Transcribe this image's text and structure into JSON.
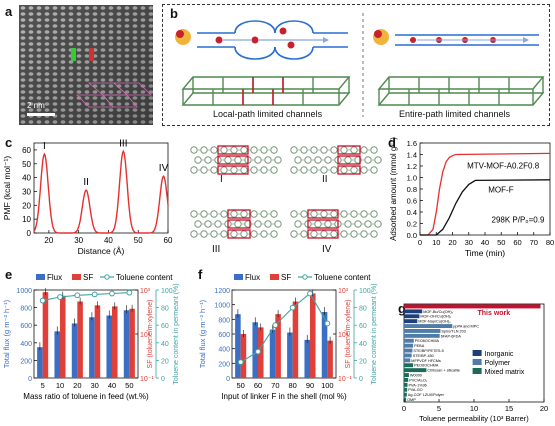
{
  "panel_labels": {
    "a": "a",
    "b": "b",
    "c": "c",
    "d": "d",
    "e": "e",
    "f": "f",
    "g": "g"
  },
  "panel_a": {
    "scalebar": "2 nm"
  },
  "panel_b": {
    "left_caption": "Local-path limited channels",
    "right_caption": "Entire-path limited channels"
  },
  "panel_c_structures": {
    "labels": [
      "I",
      "II",
      "III",
      "IV"
    ]
  },
  "colors": {
    "flux": "#3a6fc4",
    "sf": "#e0403a",
    "toluene": "#3fa3a3",
    "red_curve": "#e53030",
    "black_curve": "#111111",
    "highlight": "#c8102e"
  },
  "chart_data": [
    {
      "id": "c",
      "type": "line",
      "xlabel": "Distance (Å)",
      "ylabel": "PMF (kcal mol⁻¹)",
      "xlim": [
        15,
        60
      ],
      "ylim": [
        0,
        65
      ],
      "xticks": [
        20,
        30,
        40,
        50,
        60
      ],
      "yticks": [
        0,
        10,
        20,
        30,
        40,
        50,
        60
      ],
      "peaks": [
        {
          "label": "I",
          "x": 18.5,
          "y": 57
        },
        {
          "label": "II",
          "x": 32.5,
          "y": 31
        },
        {
          "label": "III",
          "x": 45,
          "y": 59
        },
        {
          "label": "IV",
          "x": 58.5,
          "y": 41
        }
      ],
      "grid": false
    },
    {
      "id": "d",
      "type": "line",
      "xlabel": "Time (min)",
      "ylabel": "Adsorbed amount (mmol g⁻¹)",
      "xlim": [
        0,
        80
      ],
      "ylim": [
        0,
        1.6
      ],
      "xticks": [
        0,
        10,
        20,
        30,
        40,
        50,
        60,
        70,
        80
      ],
      "yticks": [
        0.0,
        0.2,
        0.4,
        0.6,
        0.8,
        1.0,
        1.2,
        1.4,
        1.6
      ],
      "annotation": "298K  P/P₀=0.9",
      "series": [
        {
          "name": "MTV-MOF-A0.2F0.8",
          "color": "red",
          "x": [
            0,
            5,
            8,
            10,
            12,
            14,
            16,
            18,
            20,
            22,
            80
          ],
          "y": [
            0,
            0,
            0.1,
            0.4,
            0.8,
            1.1,
            1.27,
            1.35,
            1.38,
            1.4,
            1.42
          ]
        },
        {
          "name": "MOF-F",
          "color": "black",
          "x": [
            0,
            10,
            14,
            18,
            22,
            26,
            30,
            34,
            80
          ],
          "y": [
            0,
            0,
            0.1,
            0.3,
            0.55,
            0.75,
            0.88,
            0.95,
            0.96
          ]
        }
      ],
      "legend": "inline-right",
      "grid": false
    },
    {
      "id": "e",
      "type": "bar",
      "xlabel": "Mass ratio of toluene in feed (wt.%)",
      "ylabel": "Total flux (g m⁻² h⁻¹)",
      "y2label": "SF (toluene/m-xylene)",
      "y3label": "Toluene content in permeant (%)",
      "categories": [
        "5",
        "10",
        "20",
        "30",
        "40",
        "50"
      ],
      "ylim": [
        0,
        1000
      ],
      "yticks": [
        0,
        200,
        400,
        600,
        800,
        1000
      ],
      "y2_log": true,
      "y2ticks": [
        "10⁻¹",
        "10¹",
        "10³"
      ],
      "y3lim": [
        0,
        100
      ],
      "y3ticks": [
        0,
        20,
        40,
        60,
        80,
        100
      ],
      "legend": [
        "Flux",
        "SF",
        "Toluene content"
      ],
      "series": [
        {
          "name": "Flux",
          "values": [
            350,
            530,
            620,
            690,
            710,
            770
          ]
        },
        {
          "name": "SF",
          "values": [
            800,
            550,
            300,
            200,
            180,
            140
          ]
        },
        {
          "name": "Toluene content",
          "values": [
            88,
            92,
            94,
            95,
            96,
            97
          ]
        }
      ]
    },
    {
      "id": "f",
      "type": "bar",
      "xlabel": "Input of linker F in the shell (mol %)",
      "ylabel": "Total flux (g m⁻² h⁻¹)",
      "y2label": "SF (toluene/m-xylene)",
      "y3label": "Toluene content in permeant (%)",
      "categories": [
        "50",
        "60",
        "70",
        "80",
        "90",
        "100"
      ],
      "ylim": [
        0,
        1200
      ],
      "yticks": [
        0,
        200,
        400,
        600,
        800,
        1000,
        1200
      ],
      "y2_log": true,
      "y2ticks": [
        "10⁻¹",
        "10¹",
        "10³"
      ],
      "y3lim": [
        0,
        100
      ],
      "y3ticks": [
        0,
        20,
        40,
        60,
        80,
        100
      ],
      "legend": [
        "Flux",
        "SF",
        "Toluene content"
      ],
      "series": [
        {
          "name": "Flux",
          "values": [
            870,
            760,
            660,
            620,
            520,
            900
          ]
        },
        {
          "name": "SF",
          "values": [
            10,
            20,
            80,
            300,
            700,
            5
          ]
        },
        {
          "name": "Toluene content",
          "values": [
            18,
            30,
            60,
            80,
            96,
            62
          ]
        }
      ]
    },
    {
      "id": "g",
      "type": "bar",
      "orientation": "horizontal",
      "xlabel": "Toluene permeability (10³ Barrer)",
      "xlim": [
        0,
        20
      ],
      "xticks": [
        0,
        5,
        10,
        15,
        20
      ],
      "legend": [
        "Inorganic",
        "Polymer",
        "Mixed matrix"
      ],
      "highlight_label": "This work",
      "categories": [
        "This work",
        "MOF-Bu/Cu(OH)₂",
        "MOF-OH/Cu(OH)₂",
        "MOF-Nap/Cu(OH)₂",
        "ppPA and MPC",
        "Spiro/TLN 203",
        "6FAP-6FDA",
        "PEO6OCHMA",
        "PEBA",
        "STE/BP/PETES-5",
        "STE/BP-450",
        "MFPVDF HFCMs",
        "PEO6OCHMA",
        "Chitosan + silicalite",
        "W0000",
        "PVC/Al₂O₃",
        "PVA-1%36",
        "PVA-GO",
        "Ag-COF LZU0/Polyer",
        "OMP"
      ],
      "values": [
        19.5,
        2.6,
        2.2,
        1.9,
        6.9,
        5.2,
        5.1,
        1.4,
        1.3,
        1.2,
        1.1,
        0.9,
        1.3,
        3.2,
        0.7,
        0.6,
        0.5,
        0.45,
        0.4,
        0.3
      ],
      "classes": [
        "highlight",
        "inorganic",
        "inorganic",
        "inorganic",
        "polymer",
        "polymer",
        "polymer",
        "polymer",
        "polymer",
        "polymer",
        "polymer",
        "polymer",
        "mixed",
        "mixed",
        "mixed",
        "mixed",
        "mixed",
        "mixed",
        "mixed",
        "mixed"
      ]
    }
  ]
}
